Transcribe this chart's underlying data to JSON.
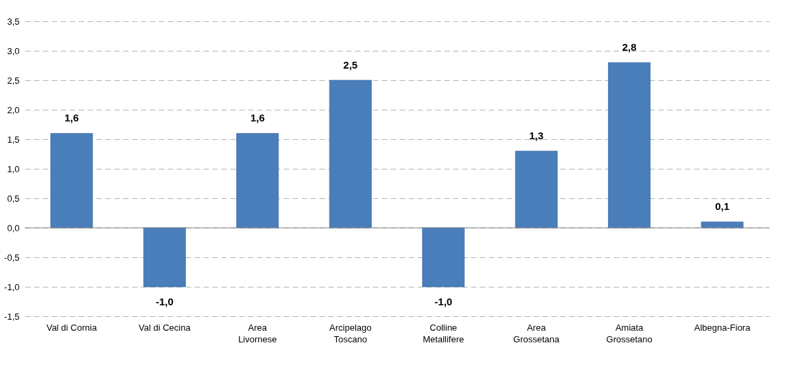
{
  "chart_data": {
    "type": "bar",
    "categories": [
      "Val di Cornia",
      "Val di Cecina",
      "Area Livornese",
      "Arcipelago Toscano",
      "Colline Metallifere",
      "Area Grossetana",
      "Amiata Grossetano",
      "Albegna-Fiora"
    ],
    "values": [
      1.6,
      -1.0,
      1.6,
      2.5,
      -1.0,
      1.3,
      2.8,
      0.1
    ],
    "value_labels": [
      "1,6",
      "-1,0",
      "1,6",
      "2,5",
      "-1,0",
      "1,3",
      "2,8",
      "0,1"
    ],
    "color": "#4a7ebb",
    "ylim": [
      -1.5,
      3.5
    ],
    "yticks": [
      {
        "value": -1.5,
        "label": "-1,5"
      },
      {
        "value": -1,
        "label": "-1,0"
      },
      {
        "value": -0.5,
        "label": "-0,5"
      },
      {
        "value": 0,
        "label": "0,0"
      },
      {
        "value": 0.5,
        "label": "0,5"
      },
      {
        "value": 1,
        "label": "1,0"
      },
      {
        "value": 1.5,
        "label": "1,5"
      },
      {
        "value": 2,
        "label": "2,0"
      },
      {
        "value": 2.5,
        "label": "2,5"
      },
      {
        "value": 3,
        "label": "3,0"
      },
      {
        "value": 3.5,
        "label": "3,5"
      }
    ],
    "grid": "y",
    "ref_lines": [
      {
        "axis": "y",
        "value": 0,
        "color": "#868686"
      }
    ]
  }
}
